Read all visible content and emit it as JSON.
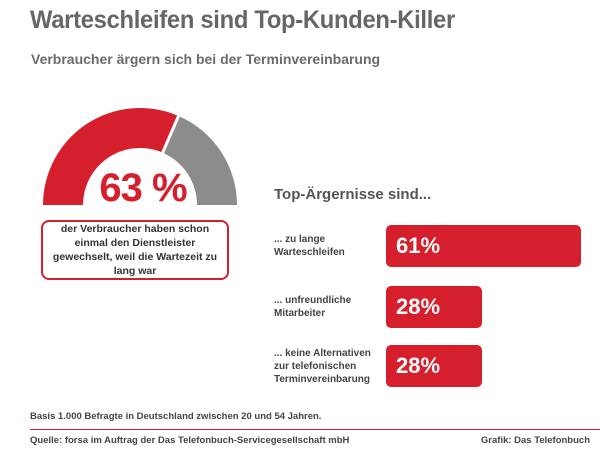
{
  "chart_data": [
    {
      "type": "pie",
      "chart_style": "semicircle-gauge",
      "title": "Warteschleifen sind Top-Kunden-Killer",
      "subtitle": "Verbraucher ärgern sich bei der Terminvereinbarung",
      "value": 63,
      "max": 100,
      "value_label": "63 %",
      "caption": "der Verbraucher haben schon einmal den Dienstleister gewechselt, weil die Wartezeit zu lang war",
      "colors": {
        "value": "#d61f2d",
        "rest": "#8c8c8c"
      }
    },
    {
      "type": "bar",
      "orientation": "horizontal",
      "title": "Top-Ärgernisse sind...",
      "categories": [
        "... zu lange Warteschleifen",
        "... unfreundliche Mitarbeiter",
        "... keine Alternativen zur telefonischen Terminvereinbarung"
      ],
      "label_lines": [
        [
          "... zu lange",
          "Warteschleifen"
        ],
        [
          "... unfreundliche",
          "Mitarbeiter"
        ],
        [
          "... keine Alternativen",
          "zur telefonischen",
          "Terminvereinbarung"
        ]
      ],
      "values": [
        61,
        28,
        28
      ],
      "value_labels": [
        "61%",
        "28%",
        "28%"
      ],
      "unit": "%",
      "bar_color": "#d61f2d"
    }
  ],
  "footer": {
    "basis": "Basis 1.000 Befragte in Deutschland zwischen 20 und 54 Jahren.",
    "source": "Quelle: forsa im Auftrag der Das Telefonbuch-Servicegesellschaft mbH",
    "credit": "Grafik: Das Telefonbuch"
  }
}
